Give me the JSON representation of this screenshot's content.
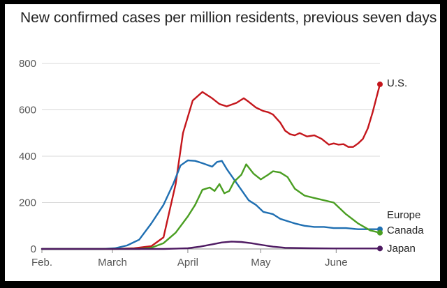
{
  "chart_data": {
    "type": "line",
    "title": "New confirmed cases per million residents, previous seven days",
    "xlabel": "",
    "ylabel": "",
    "ylim": [
      0,
      800
    ],
    "yticks": [
      0,
      200,
      400,
      600,
      800
    ],
    "xlim": [
      0,
      139
    ],
    "x_unit": "days since Feb 1",
    "xticks": [
      {
        "label": "Feb.",
        "day": 0
      },
      {
        "label": "March",
        "day": 29
      },
      {
        "label": "April",
        "day": 60
      },
      {
        "label": "May",
        "day": 90
      },
      {
        "label": "June",
        "day": 121
      }
    ],
    "grid": "horizontal",
    "series": [
      {
        "name": "U.S.",
        "color": "#c4161c",
        "x": [
          0,
          30,
          38,
          45,
          50,
          55,
          58,
          62,
          66,
          70,
          73,
          76,
          80,
          83,
          85,
          88,
          91,
          93,
          95,
          98,
          100,
          102,
          104,
          106,
          109,
          112,
          115,
          118,
          120,
          122,
          124,
          126,
          128,
          130,
          132,
          134,
          136,
          138,
          139
        ],
        "values": [
          0,
          0,
          3,
          12,
          50,
          280,
          500,
          640,
          677,
          650,
          625,
          615,
          630,
          650,
          635,
          610,
          595,
          590,
          580,
          545,
          510,
          495,
          490,
          500,
          485,
          490,
          475,
          450,
          455,
          450,
          452,
          440,
          440,
          455,
          475,
          520,
          590,
          670,
          710
        ]
      },
      {
        "name": "Europe",
        "color": "#1f6fb2",
        "x": [
          0,
          25,
          30,
          35,
          40,
          45,
          50,
          54,
          57,
          60,
          63,
          66,
          70,
          72,
          74,
          76,
          79,
          82,
          85,
          88,
          91,
          95,
          98,
          101,
          104,
          108,
          112,
          116,
          120,
          125,
          130,
          135,
          139
        ],
        "values": [
          0,
          0,
          3,
          15,
          40,
          110,
          190,
          280,
          360,
          382,
          380,
          370,
          355,
          375,
          380,
          345,
          300,
          255,
          210,
          190,
          160,
          150,
          130,
          120,
          110,
          100,
          95,
          95,
          90,
          90,
          85,
          85,
          85
        ]
      },
      {
        "name": "Canada",
        "color": "#4a9e22",
        "x": [
          0,
          40,
          45,
          50,
          55,
          60,
          63,
          66,
          69,
          71,
          73,
          75,
          77,
          79,
          82,
          84,
          87,
          90,
          93,
          95,
          98,
          101,
          104,
          108,
          112,
          116,
          120,
          125,
          130,
          135,
          139
        ],
        "values": [
          0,
          0,
          5,
          25,
          70,
          140,
          190,
          255,
          265,
          250,
          280,
          240,
          250,
          290,
          320,
          365,
          325,
          300,
          320,
          335,
          330,
          310,
          260,
          230,
          220,
          210,
          200,
          150,
          110,
          80,
          70
        ]
      },
      {
        "name": "Japan",
        "color": "#4e1a62",
        "x": [
          0,
          50,
          60,
          65,
          70,
          74,
          78,
          82,
          86,
          90,
          95,
          100,
          110,
          120,
          130,
          139
        ],
        "values": [
          0,
          0,
          3,
          10,
          20,
          28,
          32,
          30,
          25,
          18,
          10,
          5,
          3,
          2,
          2,
          2
        ]
      }
    ]
  }
}
